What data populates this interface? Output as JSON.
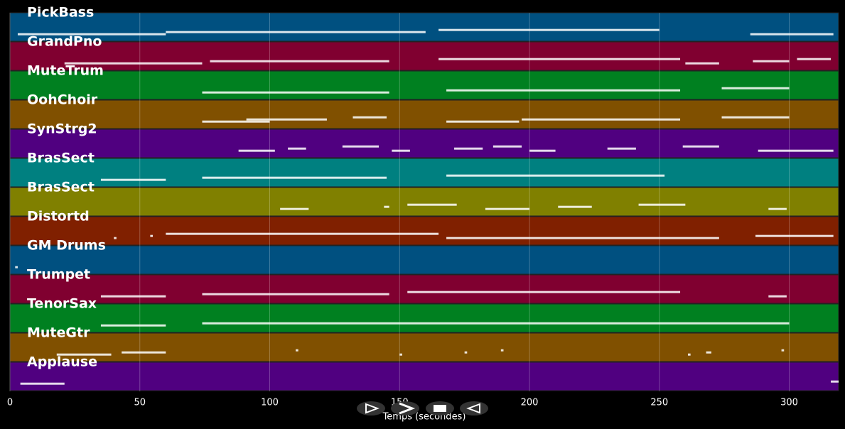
{
  "chart_data": {
    "type": "pianoroll",
    "xlabel": "Temps (secondes)",
    "xlim": [
      0,
      319
    ],
    "xticks": [
      0,
      50,
      100,
      150,
      200,
      250,
      300
    ],
    "grid": true,
    "tracks": [
      {
        "name": "PickBass",
        "color": "#005080",
        "notes": [
          [
            3,
            60
          ],
          [
            60,
            160
          ],
          [
            165,
            250
          ],
          [
            285,
            317
          ]
        ]
      },
      {
        "name": "GrandPno",
        "color": "#800030",
        "notes": [
          [
            21,
            74
          ],
          [
            77,
            146
          ],
          [
            165,
            258
          ],
          [
            260,
            273
          ],
          [
            286,
            300
          ],
          [
            303,
            316
          ]
        ]
      },
      {
        "name": "MuteTrum",
        "color": "#008020",
        "notes": [
          [
            74,
            146
          ],
          [
            168,
            258
          ],
          [
            274,
            300
          ]
        ]
      },
      {
        "name": "OohChoir",
        "color": "#805000",
        "notes": [
          [
            74,
            100
          ],
          [
            91,
            122
          ],
          [
            132,
            145
          ],
          [
            168,
            196
          ],
          [
            197,
            258
          ],
          [
            274,
            300
          ]
        ]
      },
      {
        "name": "SynStrg2",
        "color": "#500080",
        "notes": [
          [
            88,
            102
          ],
          [
            107,
            114
          ],
          [
            128,
            142
          ],
          [
            147,
            154
          ],
          [
            171,
            182
          ],
          [
            186,
            197
          ],
          [
            200,
            210
          ],
          [
            230,
            241
          ],
          [
            259,
            273
          ],
          [
            288,
            317
          ]
        ]
      },
      {
        "name": "BrasSect",
        "color": "#008080",
        "notes": [
          [
            35,
            60
          ],
          [
            74,
            145
          ],
          [
            168,
            252
          ]
        ]
      },
      {
        "name": "BrasSect",
        "color": "#808000",
        "notes": [
          [
            104,
            115
          ],
          [
            144,
            146
          ],
          [
            153,
            172
          ],
          [
            183,
            200
          ],
          [
            211,
            224
          ],
          [
            242,
            260
          ],
          [
            292,
            299
          ]
        ]
      },
      {
        "name": "Distortd",
        "color": "#802000",
        "notes": [
          [
            40,
            41
          ],
          [
            54,
            55
          ],
          [
            60,
            165
          ],
          [
            168,
            273
          ],
          [
            287,
            317
          ]
        ]
      },
      {
        "name": "GM Drums",
        "color": "#005080",
        "notes": [
          [
            2,
            3
          ]
        ]
      },
      {
        "name": "Trumpet",
        "color": "#800030",
        "notes": [
          [
            35,
            60
          ],
          [
            74,
            146
          ],
          [
            153,
            258
          ],
          [
            292,
            299
          ]
        ]
      },
      {
        "name": "TenorSax",
        "color": "#008020",
        "notes": [
          [
            35,
            60
          ],
          [
            74,
            300
          ]
        ]
      },
      {
        "name": "MuteGtr",
        "color": "#805000",
        "notes": [
          [
            18,
            39
          ],
          [
            43,
            60
          ],
          [
            110,
            111
          ],
          [
            150,
            151
          ],
          [
            175,
            176
          ],
          [
            189,
            190
          ],
          [
            261,
            262
          ],
          [
            268,
            270
          ],
          [
            297,
            298
          ]
        ]
      },
      {
        "name": "Applause",
        "color": "#500080",
        "notes": [
          [
            4,
            21
          ],
          [
            316,
            319
          ]
        ]
      }
    ]
  }
}
